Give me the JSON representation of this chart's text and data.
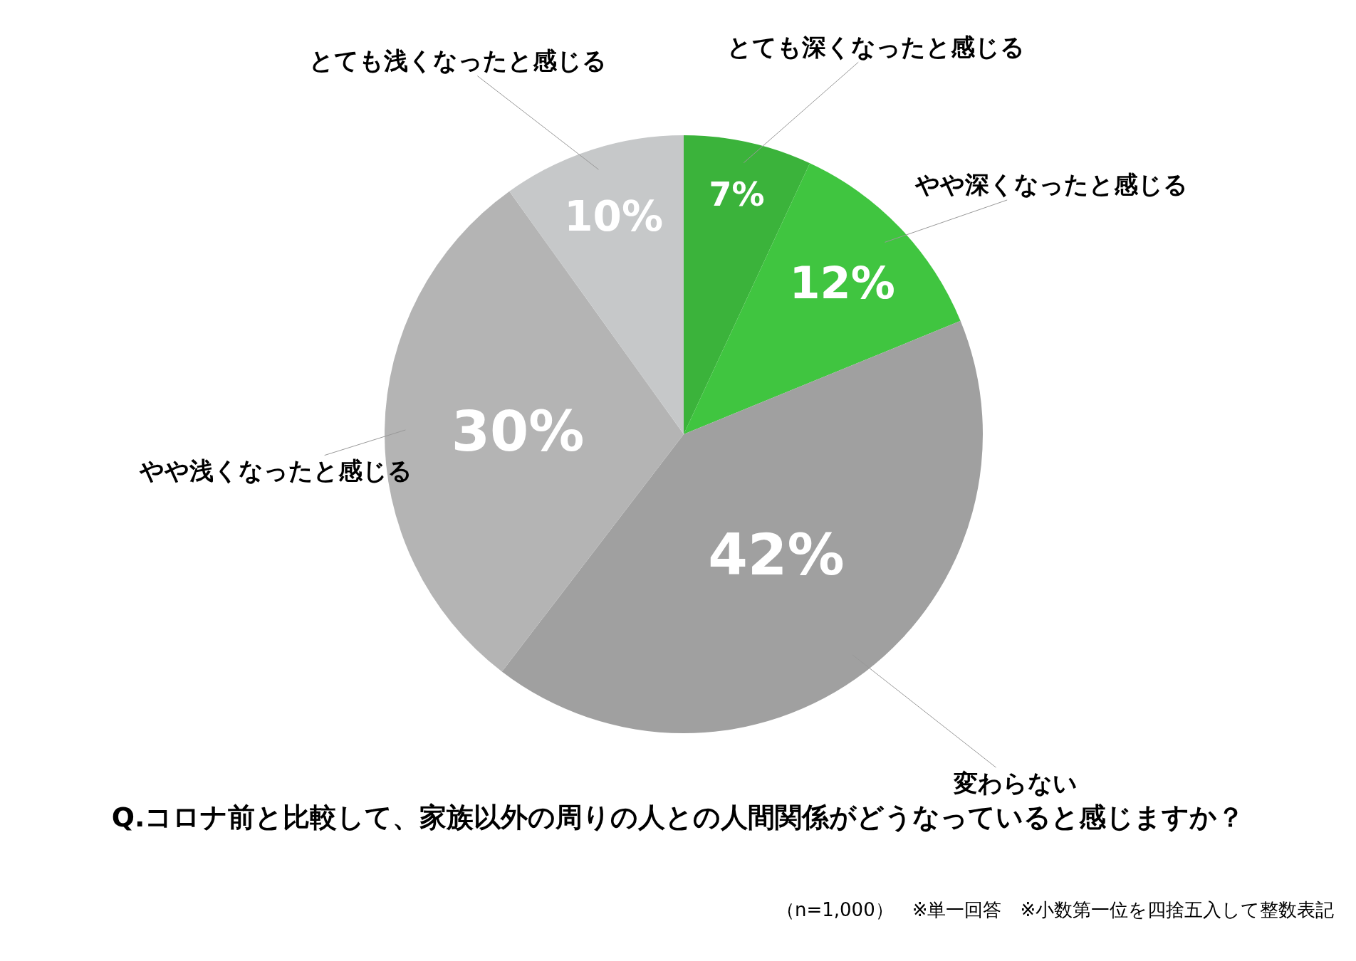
{
  "chart_data": {
    "type": "pie",
    "title": "Q.コロナ前と比較して、家族以外の周りの人との人間関係がどうなっていると感じますか？",
    "categories": [
      "とても深くなったと感じる",
      "やや深くなったと感じる",
      "変わらない",
      "やや浅くなったと感じる",
      "とても浅くなったと感じる"
    ],
    "values": [
      7,
      12,
      42,
      30,
      10
    ],
    "colors": [
      "#3bb33b",
      "#40c540",
      "#a0a0a0",
      "#b4b4b4",
      "#c6c8c9"
    ],
    "value_labels": [
      "7%",
      "12%",
      "42%",
      "30%",
      "10%"
    ],
    "annotations": [
      "（n=1,000）　※単一回答　※小数第一位を四捨五入して整数表記"
    ]
  }
}
